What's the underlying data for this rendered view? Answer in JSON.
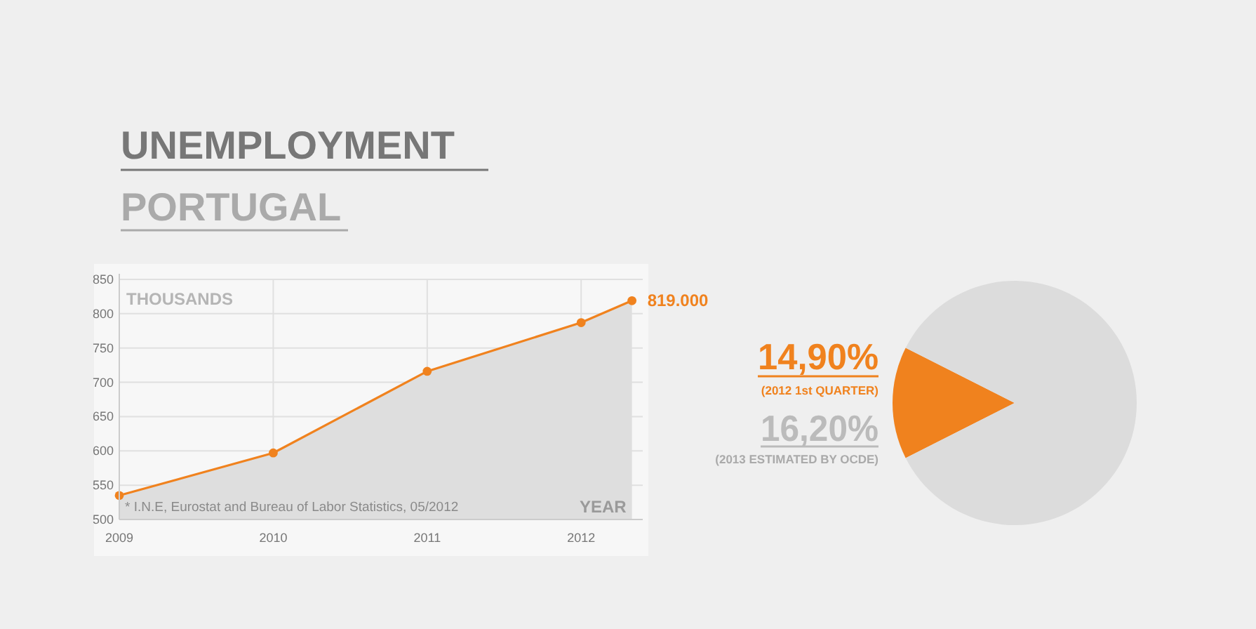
{
  "chart_data": [
    {
      "type": "area",
      "title": "UNEMPLOYMENT",
      "subtitle": "PORTUGAL",
      "ylabel": "THOUSANDS",
      "xlabel": "YEAR",
      "annotations": [
        "* I.N.E, Eurostat and Bureau of Labor Statistics, 05/2012",
        {
          "text": "819.000",
          "x": 2012.33,
          "y": 819
        }
      ],
      "x": [
        2009,
        2010,
        2011,
        2012,
        2012.33
      ],
      "series": [
        {
          "color": "#f0821e",
          "values": [
            535,
            597,
            716,
            787,
            819
          ]
        }
      ],
      "xlim": [
        2009,
        2012.4
      ],
      "xticks": [
        2009,
        2010,
        2011,
        2012
      ],
      "ylim": [
        500,
        850
      ],
      "yticks": [
        500,
        550,
        600,
        650,
        700,
        750,
        800,
        850
      ],
      "grid": true,
      "marker": "circle"
    },
    {
      "type": "pie",
      "categories": [
        null,
        null
      ],
      "values": [
        14.9,
        85.1
      ],
      "colors": [
        "#f0821e",
        "#dcdcdc"
      ],
      "value_labels": [
        "14,90%",
        null
      ],
      "annotations": [
        "(2012 1st QUARTER)",
        "16,20%",
        "(2013 ESTIMATED BY OCDE)"
      ]
    }
  ]
}
